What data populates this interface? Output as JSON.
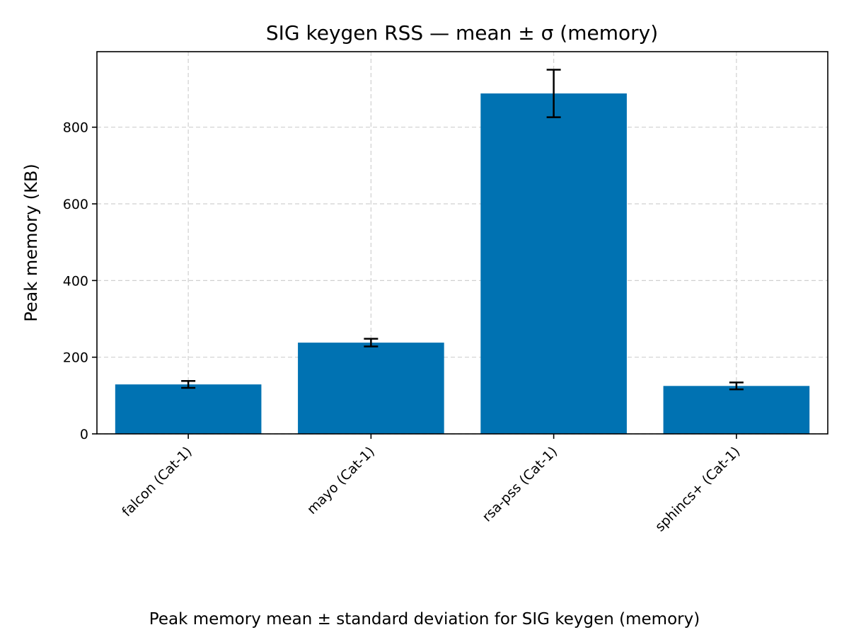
{
  "chart_data": {
    "type": "bar",
    "title": "SIG keygen RSS — mean ± σ (memory)",
    "xlabel": "",
    "ylabel": "Peak memory (KB)",
    "categories": [
      "falcon (Cat-1)",
      "mayo (Cat-1)",
      "rsa-pss (Cat-1)",
      "sphincs+ (Cat-1)"
    ],
    "values": [
      129,
      238,
      888,
      125
    ],
    "errors": [
      9,
      10,
      62,
      9
    ],
    "ylim": [
      0,
      997
    ],
    "yticks": [
      0,
      200,
      400,
      600,
      800
    ],
    "grid": true,
    "bar_color": "#0072b2",
    "error_color": "#000000"
  },
  "caption": "Peak memory mean ± standard deviation for SIG keygen (memory)"
}
